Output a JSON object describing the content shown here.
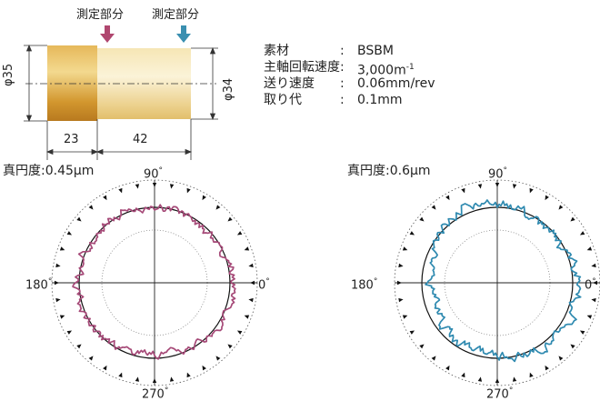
{
  "part": {
    "labels": {
      "measure_1": "測定部分",
      "measure_2": "測定部分"
    },
    "diameters": {
      "left": "φ35",
      "right": "φ34"
    },
    "lengths": {
      "a": "23",
      "b": "42"
    },
    "colors": {
      "marker_1": "#b0476f",
      "marker_2": "#3a8fb0"
    }
  },
  "specs": [
    {
      "name": "素材",
      "value": "BSBM",
      "sup": ""
    },
    {
      "name": "主軸回転速度",
      "value": "3,000m",
      "sup": "-1"
    },
    {
      "name": "送り速度",
      "value": "0.06mm/rev",
      "sup": ""
    },
    {
      "name": "取り代",
      "value": "0.1mm",
      "sup": ""
    }
  ],
  "specs_colon": ":",
  "plots": [
    {
      "title": "真円度:0.45μm",
      "color": "#a64a78",
      "angles": {
        "top": "90",
        "bottom": "270",
        "left": "180",
        "right": "0"
      },
      "deg": "°"
    },
    {
      "title": "真円度:0.6μm",
      "color": "#2f8ab0",
      "angles": {
        "top": "90",
        "bottom": "270",
        "left": "180",
        "right": "0"
      },
      "deg": "°"
    }
  ]
}
